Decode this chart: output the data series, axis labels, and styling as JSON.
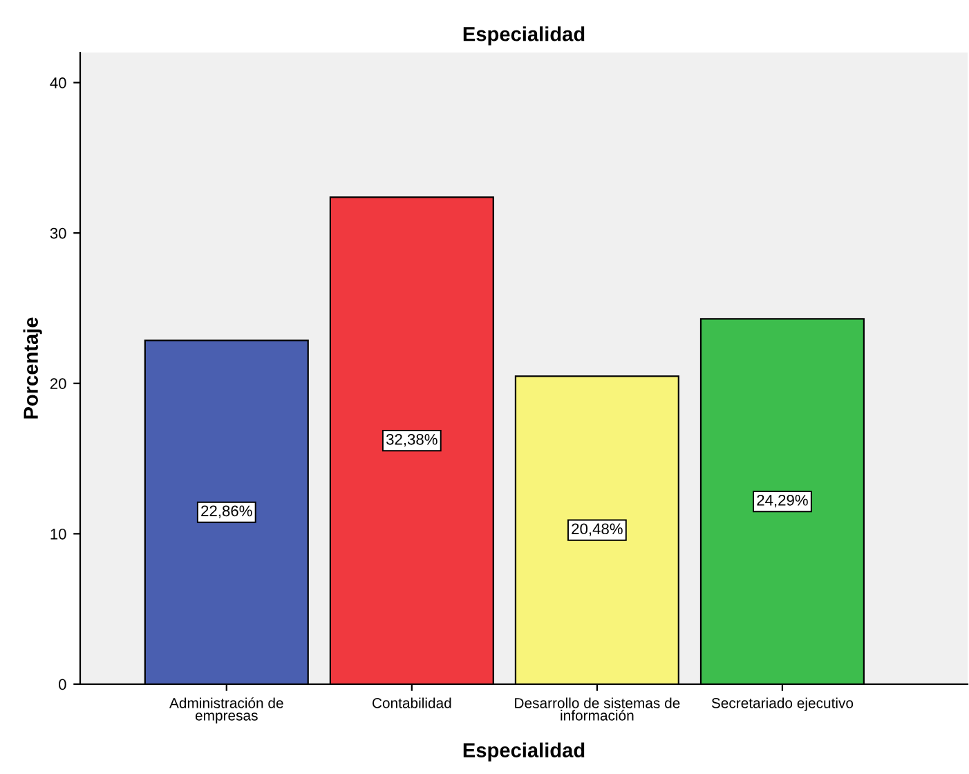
{
  "chart_data": {
    "type": "bar",
    "title": "Especialidad",
    "xlabel": "Especialidad",
    "ylabel": "Porcentaje",
    "categories": [
      "Administración de\nempresas",
      "Contabilidad",
      "Desarrollo de sistemas de\ninformación",
      "Secretariado ejecutivo"
    ],
    "values": [
      22.86,
      32.38,
      20.48,
      24.29
    ],
    "colors": [
      "#4a5fb0",
      "#f0393f",
      "#f8f47a",
      "#3dbd4d"
    ],
    "value_labels": [
      "22,86%",
      "32,38%",
      "20,48%",
      "24,29%"
    ],
    "ylim": [
      0,
      42
    ],
    "yticks": [
      0,
      10,
      20,
      30,
      40
    ],
    "grid": false,
    "legend": false
  }
}
